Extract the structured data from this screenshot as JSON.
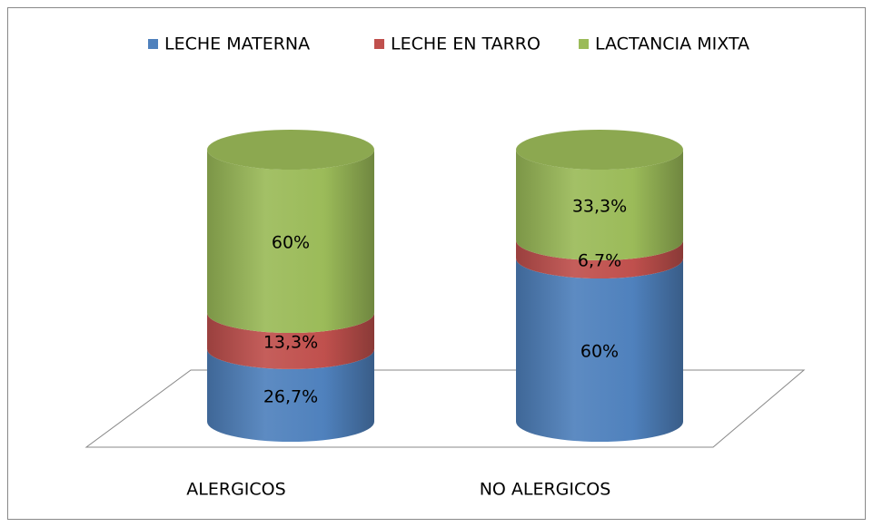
{
  "chart_data": {
    "type": "bar3d_stacked",
    "categories": [
      "ALERGICOS",
      "NO ALERGICOS"
    ],
    "series": [
      {
        "name": "LECHE MATERNA",
        "color": "#4f81bd",
        "values": [
          26.7,
          60
        ],
        "value_labels": [
          "26,7%",
          "60%"
        ]
      },
      {
        "name": "LECHE EN TARRO",
        "color": "#c0504d",
        "values": [
          13.3,
          6.7
        ],
        "value_labels": [
          "13,3%",
          "6,7%"
        ]
      },
      {
        "name": "LACTANCIA MIXTA",
        "color": "#9bbb59",
        "values": [
          60,
          33.3
        ],
        "value_labels": [
          "60%",
          "33,3%"
        ]
      }
    ],
    "ylim": [
      0,
      100
    ],
    "legend": "top"
  }
}
